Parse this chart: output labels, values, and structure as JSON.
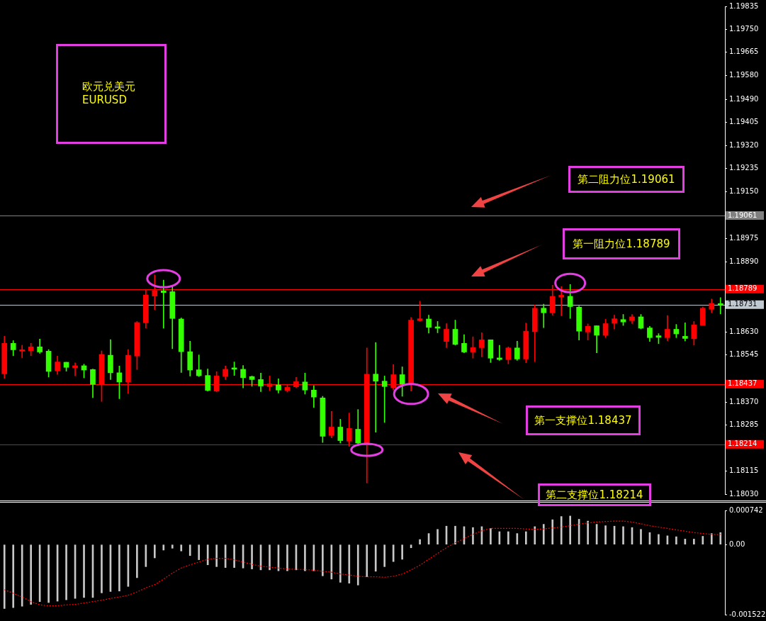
{
  "chart_data": [
    {
      "type": "candlestick",
      "title": "欧元兑美元",
      "subtitle": "EURUSD",
      "tick_labels": "y",
      "categories": [
        null,
        null,
        null,
        null,
        null,
        null,
        null,
        null,
        null,
        null,
        null,
        null,
        null,
        null,
        null,
        null,
        null,
        null,
        null,
        null,
        null,
        null,
        null,
        null,
        null,
        null,
        null,
        null,
        null,
        null,
        null,
        null,
        null,
        null,
        null,
        null,
        null,
        null,
        null,
        null,
        null,
        null,
        null,
        null,
        null,
        null,
        null,
        null,
        null,
        null,
        null,
        null,
        null,
        null,
        null,
        null,
        null,
        null,
        null,
        null,
        null,
        null,
        null,
        null,
        null,
        null,
        null,
        null,
        null,
        null,
        null,
        null,
        null,
        null,
        null,
        null,
        null,
        null,
        null,
        null,
        null,
        null
      ],
      "ohlc": [
        [
          1.18475,
          1.18614,
          1.18458,
          1.18588
        ],
        [
          1.18588,
          1.18598,
          1.18542,
          1.18564
        ],
        [
          1.18559,
          1.18581,
          1.18535,
          1.18562
        ],
        [
          1.18561,
          1.18588,
          1.18542,
          1.18575
        ],
        [
          1.18575,
          1.18604,
          1.18551,
          1.18556
        ],
        [
          1.18559,
          1.18565,
          1.18463,
          1.18484
        ],
        [
          1.18486,
          1.18541,
          1.18473,
          1.18519
        ],
        [
          1.18518,
          1.18518,
          1.18485,
          1.18499
        ],
        [
          1.18498,
          1.18516,
          1.18468,
          1.18505
        ],
        [
          1.18505,
          1.18511,
          1.1846,
          1.18489
        ],
        [
          1.18491,
          1.18493,
          1.18387,
          1.18436
        ],
        [
          1.18436,
          1.1856,
          1.18373,
          1.18547
        ],
        [
          1.18544,
          1.18602,
          1.18454,
          1.18479
        ],
        [
          1.18479,
          1.18504,
          1.18383,
          1.18445
        ],
        [
          1.18445,
          1.18565,
          1.18403,
          1.18544
        ],
        [
          1.18541,
          1.18669,
          1.18491,
          1.18665
        ],
        [
          1.18664,
          1.18788,
          1.18644,
          1.18767
        ],
        [
          1.18763,
          1.18841,
          1.18713,
          1.18783
        ],
        [
          1.18782,
          1.18822,
          1.18644,
          1.18776
        ],
        [
          1.18779,
          1.188,
          1.18568,
          1.1868
        ],
        [
          1.18678,
          1.18682,
          1.1848,
          1.18557
        ],
        [
          1.18557,
          1.18596,
          1.18467,
          1.18489
        ],
        [
          1.1849,
          1.18545,
          1.18465,
          1.18468
        ],
        [
          1.18469,
          1.18493,
          1.18411,
          1.18414
        ],
        [
          1.18411,
          1.18483,
          1.18409,
          1.18467
        ],
        [
          1.18466,
          1.18504,
          1.18454,
          1.18492
        ],
        [
          1.18497,
          1.18519,
          1.18469,
          1.18492
        ],
        [
          1.18492,
          1.18506,
          1.18423,
          1.18461
        ],
        [
          1.18465,
          1.18467,
          1.18429,
          1.18454
        ],
        [
          1.18454,
          1.18478,
          1.18409,
          1.1843
        ],
        [
          1.18428,
          1.18467,
          1.18413,
          1.18438
        ],
        [
          1.18434,
          1.18457,
          1.18404,
          1.18415
        ],
        [
          1.18414,
          1.18435,
          1.18408,
          1.18425
        ],
        [
          1.18427,
          1.18462,
          1.18423,
          1.18446
        ],
        [
          1.18445,
          1.18478,
          1.184,
          1.18415
        ],
        [
          1.18415,
          1.18432,
          1.18351,
          1.18389
        ],
        [
          1.18386,
          1.18392,
          1.18221,
          1.18244
        ],
        [
          1.18247,
          1.18336,
          1.18238,
          1.18278
        ],
        [
          1.18278,
          1.18307,
          1.18219,
          1.18228
        ],
        [
          1.18226,
          1.1833,
          1.18207,
          1.18273
        ],
        [
          1.1827,
          1.18343,
          1.18217,
          1.18219
        ],
        [
          1.18215,
          1.18571,
          1.18071,
          1.18474
        ],
        [
          1.18474,
          1.18591,
          1.18259,
          1.18448
        ],
        [
          1.18448,
          1.18467,
          1.18295,
          1.18428
        ],
        [
          1.18424,
          1.18509,
          1.18415,
          1.18472
        ],
        [
          1.18472,
          1.18501,
          1.18392,
          1.18437
        ],
        [
          1.18439,
          1.18684,
          1.18411,
          1.18674
        ],
        [
          1.18672,
          1.18744,
          1.1867,
          1.18679
        ],
        [
          1.18678,
          1.18692,
          1.18626,
          1.18647
        ],
        [
          1.18648,
          1.18669,
          1.18627,
          1.18644
        ],
        [
          1.18595,
          1.18661,
          1.18572,
          1.1864
        ],
        [
          1.1864,
          1.18674,
          1.18582,
          1.18584
        ],
        [
          1.18588,
          1.1862,
          1.18553,
          1.18556
        ],
        [
          1.18556,
          1.18612,
          1.18533,
          1.18572
        ],
        [
          1.18572,
          1.18627,
          1.18538,
          1.18601
        ],
        [
          1.18601,
          1.18601,
          1.18517,
          1.18533
        ],
        [
          1.18534,
          1.18581,
          1.18525,
          1.18528
        ],
        [
          1.18528,
          1.18575,
          1.18512,
          1.18571
        ],
        [
          1.18571,
          1.18596,
          1.18525,
          1.1853
        ],
        [
          1.1853,
          1.18663,
          1.18516,
          1.18633
        ],
        [
          1.18631,
          1.1873,
          1.1852,
          1.18718
        ],
        [
          1.18718,
          1.18733,
          1.18646,
          1.18701
        ],
        [
          1.18701,
          1.18803,
          1.18692,
          1.18762
        ],
        [
          1.18759,
          1.18798,
          1.1869,
          1.18766
        ],
        [
          1.18762,
          1.18806,
          1.1868,
          1.18724
        ],
        [
          1.18722,
          1.18726,
          1.186,
          1.18633
        ],
        [
          1.1863,
          1.1866,
          1.186,
          1.18651
        ],
        [
          1.18653,
          1.18653,
          1.18553,
          1.18618
        ],
        [
          1.18618,
          1.18677,
          1.18609,
          1.18661
        ],
        [
          1.18662,
          1.18692,
          1.18641,
          1.18679
        ],
        [
          1.18676,
          1.18695,
          1.18654,
          1.18667
        ],
        [
          1.18672,
          1.18695,
          1.18661,
          1.18686
        ],
        [
          1.18686,
          1.18695,
          1.18641,
          1.18644
        ],
        [
          1.18645,
          1.18651,
          1.18595,
          1.18609
        ],
        [
          1.18616,
          1.18624,
          1.18587,
          1.1861
        ],
        [
          1.18609,
          1.18691,
          1.18597,
          1.1864
        ],
        [
          1.1864,
          1.18658,
          1.18609,
          1.18623
        ],
        [
          1.18614,
          1.18664,
          1.18597,
          1.18606
        ],
        [
          1.18605,
          1.18669,
          1.18582,
          1.18656
        ],
        [
          1.18655,
          1.18723,
          1.18655,
          1.18718
        ],
        [
          1.18714,
          1.18752,
          1.18701,
          1.18736
        ],
        [
          1.18732,
          1.18757,
          1.18697,
          1.1873
        ]
      ],
      "colors": [
        "#ff0000",
        "#33ff00",
        "#ff0000",
        "#ff0000",
        "#33ff00",
        "#33ff00",
        "#ff0000",
        "#33ff00",
        "#ff0000",
        "#33ff00",
        "#33ff00",
        "#ff0000",
        "#33ff00",
        "#33ff00",
        "#ff0000",
        "#ff0000",
        "#ff0000",
        "#ff0000",
        "#33ff00",
        "#33ff00",
        "#33ff00",
        "#33ff00",
        "#33ff00",
        "#33ff00",
        "#ff0000",
        "#ff0000",
        "#33ff00",
        "#33ff00",
        "#33ff00",
        "#33ff00",
        "#ff0000",
        "#33ff00",
        "#ff0000",
        "#ff0000",
        "#33ff00",
        "#33ff00",
        "#33ff00",
        "#ff0000",
        "#33ff00",
        "#ff0000",
        "#33ff00",
        "#ff0000",
        "#33ff00",
        "#33ff00",
        "#ff0000",
        "#33ff00",
        "#ff0000",
        "#ff0000",
        "#33ff00",
        "#33ff00",
        "#ff0000",
        "#33ff00",
        "#33ff00",
        "#ff0000",
        "#ff0000",
        "#33ff00",
        "#33ff00",
        "#ff0000",
        "#33ff00",
        "#ff0000",
        "#ff0000",
        "#33ff00",
        "#ff0000",
        "#ff0000",
        "#33ff00",
        "#33ff00",
        "#ff0000",
        "#33ff00",
        "#ff0000",
        "#ff0000",
        "#33ff00",
        "#ff0000",
        "#33ff00",
        "#33ff00",
        "#33ff00",
        "#ff0000",
        "#33ff00",
        "#33ff00",
        "#ff0000",
        "#ff0000",
        "#ff0000",
        "#33ff00"
      ],
      "ylim": [
        1.1803,
        1.19835
      ],
      "yticks": [
        1.19835,
        {
          "value": 1.1975,
          "label": "1.19750"
        },
        1.19665,
        {
          "value": 1.1958,
          "label": "1.19580"
        },
        {
          "value": 1.1949,
          "label": "1.19490"
        },
        1.19405,
        {
          "value": 1.1932,
          "label": "1.19320"
        },
        1.19235,
        {
          "value": 1.1915,
          "label": "1.19150"
        },
        1.18975,
        {
          "value": 1.1889,
          "label": "1.18890"
        },
        {
          "value": 1.1863,
          "label": "1.18630"
        },
        1.18545,
        {
          "value": 1.1837,
          "label": "1.18370"
        },
        1.18285,
        1.18115,
        {
          "value": 1.1803,
          "label": "1.18030"
        }
      ],
      "ref_lines": [
        {
          "axis": "y",
          "value": 1.19061,
          "label": "1.19061",
          "color": "#808080"
        },
        {
          "axis": "y",
          "value": 1.18789,
          "label": "1.18789",
          "color": "#ff0000"
        },
        {
          "axis": "y",
          "value": 1.18731,
          "label": "1.18731",
          "color": "#c0c8d0"
        },
        {
          "axis": "y",
          "value": 1.18437,
          "label": "1.18437",
          "color": "#ff0000"
        },
        {
          "axis": "y",
          "value": 1.18214,
          "label": "1.18214",
          "color": "#ff0000"
        }
      ],
      "annotations": [
        "第二阻力位1.19061",
        "第一阻力位1.18789",
        "第一支撑位1.18437",
        "第二支撑位1.18214"
      ]
    },
    {
      "type": "bar",
      "marker": "none",
      "tick_labels": "y",
      "categories": [
        null,
        null,
        null,
        null,
        null,
        null,
        null,
        null,
        null,
        null,
        null,
        null,
        null,
        null,
        null,
        null,
        null,
        null,
        null,
        null,
        null,
        null,
        null,
        null,
        null,
        null,
        null,
        null,
        null,
        null,
        null,
        null,
        null,
        null,
        null,
        null,
        null,
        null,
        null,
        null,
        null,
        null,
        null,
        null,
        null,
        null,
        null,
        null,
        null,
        null,
        null,
        null,
        null,
        null,
        null,
        null,
        null,
        null,
        null,
        null,
        null,
        null,
        null,
        null,
        null,
        null,
        null,
        null,
        null,
        null,
        null,
        null,
        null,
        null,
        null,
        null,
        null,
        null,
        null,
        null,
        null,
        null
      ],
      "ylim": [
        -0.001522,
        0.000742
      ],
      "yticks": [
        0.000742,
        {
          "value": 0,
          "label": "0.00"
        },
        -0.001522
      ],
      "series": [
        {
          "type": "bar",
          "color": "#c8c8c8",
          "values": [
            -0.00139,
            -0.00137,
            -0.00134,
            -0.0013,
            -0.00124,
            -0.00126,
            -0.00123,
            -0.0012,
            -0.00117,
            -0.00115,
            -0.00115,
            -0.00105,
            -0.00102,
            -0.00101,
            -0.00091,
            -0.00072,
            -0.00048,
            -0.00029,
            -0.00012,
            -8e-05,
            -0.00014,
            -0.00024,
            -0.00033,
            -0.00044,
            -0.00048,
            -0.0005,
            -0.0005,
            -0.00051,
            -0.00053,
            -0.00055,
            -0.00055,
            -0.00057,
            -0.00057,
            -0.00055,
            -0.00057,
            -0.00057,
            -0.00068,
            -0.00075,
            -0.00082,
            -0.00084,
            -0.00088,
            -0.0007,
            -0.00058,
            -0.00048,
            -0.00037,
            -0.00032,
            -7e-05,
            0.00011,
            0.00024,
            0.00033,
            0.0004,
            0.0004,
            0.00039,
            0.00037,
            0.00039,
            0.00035,
            0.00028,
            0.00028,
            0.00024,
            0.00028,
            0.00039,
            0.00044,
            0.00054,
            0.00061,
            0.00062,
            0.00055,
            0.00051,
            0.00044,
            0.00041,
            0.0004,
            0.00039,
            0.00037,
            0.00033,
            0.00026,
            0.00022,
            0.00019,
            0.00017,
            0.00012,
            0.00012,
            0.00018,
            0.00024,
            0.00026
          ]
        },
        {
          "type": "line",
          "color": "#ff0000",
          "line_style": "dotted",
          "values": [
            -0.00098,
            -0.00106,
            -0.00114,
            -0.00124,
            -0.00131,
            -0.00133,
            -0.00133,
            -0.00131,
            -0.0013,
            -0.00127,
            -0.00124,
            -0.00121,
            -0.00117,
            -0.00114,
            -0.0011,
            -0.00103,
            -0.00094,
            -0.00087,
            -0.00075,
            -0.00062,
            -0.00051,
            -0.00044,
            -0.00038,
            -0.00032,
            -0.0003,
            -0.0003,
            -0.00033,
            -0.00038,
            -0.00043,
            -0.00047,
            -0.00049,
            -0.00051,
            -0.00053,
            -0.00054,
            -0.00054,
            -0.00056,
            -0.00058,
            -0.0006,
            -0.00064,
            -0.00066,
            -0.00069,
            -0.0007,
            -0.0007,
            -0.00071,
            -0.00069,
            -0.00064,
            -0.00055,
            -0.00045,
            -0.00032,
            -0.00019,
            -7e-05,
            4e-05,
            0.00013,
            0.00022,
            0.0003,
            0.00035,
            0.00035,
            0.00035,
            0.00035,
            0.00034,
            0.00033,
            0.00034,
            0.00036,
            0.00038,
            0.00041,
            0.00044,
            0.00047,
            0.00049,
            0.0005,
            0.00051,
            0.00051,
            0.00049,
            0.00045,
            0.00041,
            0.00038,
            0.00035,
            0.00032,
            0.00029,
            0.00026,
            0.00024,
            0.00022,
            0.00022
          ]
        }
      ]
    }
  ]
}
